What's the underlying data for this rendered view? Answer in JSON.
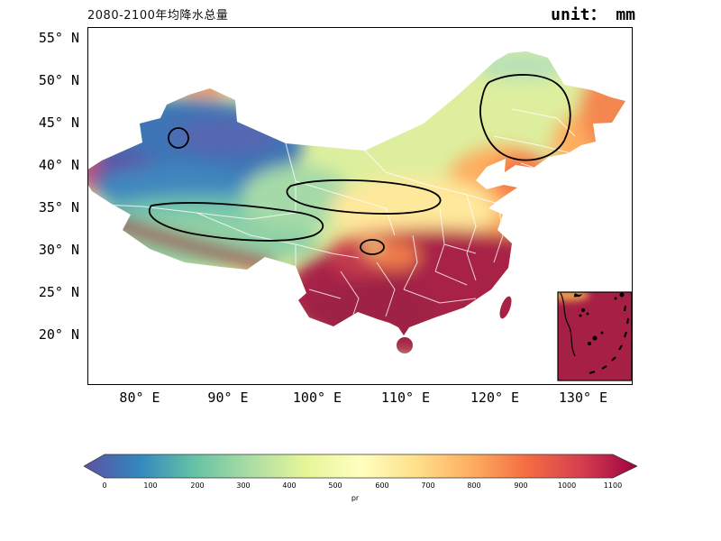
{
  "title": "2080-2100年均降水总量",
  "unit_label": "unit： mm",
  "axes": {
    "y_ticks": [
      "55° N",
      "50° N",
      "45° N",
      "40° N",
      "35° N",
      "30° N",
      "25° N",
      "20° N"
    ],
    "x_ticks": [
      "80° E",
      "90° E",
      "100° E",
      "110° E",
      "120° E",
      "130° E"
    ]
  },
  "colorbar": {
    "label": "pr",
    "ticks": [
      "0",
      "100",
      "200",
      "300",
      "400",
      "500",
      "600",
      "700",
      "800",
      "900",
      "1000",
      "1100"
    ],
    "colors": [
      "#5e4fa2",
      "#3288bd",
      "#66c2a5",
      "#abdda4",
      "#e6f598",
      "#ffffbf",
      "#fee08b",
      "#fdae61",
      "#f46d43",
      "#d53e4f",
      "#9e0142"
    ]
  },
  "chart_data": {
    "type": "heatmap",
    "title": "2080-2100年均降水总量",
    "unit": "mm",
    "variable": "pr",
    "colormap": "Spectral reversed (purple=low, dark red=high)",
    "colorbar_ticks": [
      0,
      100,
      200,
      300,
      400,
      500,
      600,
      700,
      800,
      900,
      1000,
      1100
    ],
    "colorbar_extend": "both",
    "x_axis": {
      "tick_labels": [
        "80° E",
        "90° E",
        "100° E",
        "110° E",
        "120° E",
        "130° E"
      ],
      "range_deg_e": [
        72,
        136
      ]
    },
    "y_axis": {
      "tick_labels": [
        "55° N",
        "50° N",
        "45° N",
        "40° N",
        "35° N",
        "30° N",
        "25° N",
        "20° N"
      ],
      "range_deg_n": [
        18,
        56
      ]
    },
    "regions": [
      {
        "region": "Xinjiang / northwest basins",
        "approx_pr_mm": "0-200"
      },
      {
        "region": "Tibetan Plateau interior",
        "approx_pr_mm": "200-450"
      },
      {
        "region": "Inner Mongolia / north-central",
        "approx_pr_mm": "450-700"
      },
      {
        "region": "Northeast plain",
        "approx_pr_mm": "450-800"
      },
      {
        "region": "North China / Bohai rim",
        "approx_pr_mm": "700-900"
      },
      {
        "region": "Sichuan and central transition belt",
        "approx_pr_mm": "800-1100"
      },
      {
        "region": "South / southeast China, Himalayan southern edge",
        "approx_pr_mm": ">1100"
      }
    ],
    "annotations": "black lines are selected isohyet contours; thin white lines are province boundaries",
    "inset": "South China Sea inset map at bottom right"
  }
}
